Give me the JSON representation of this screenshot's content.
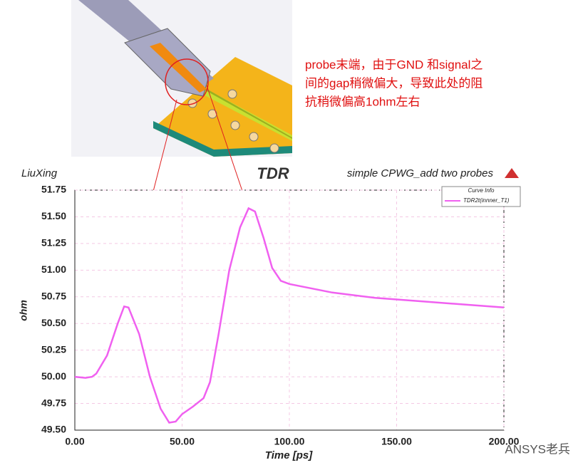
{
  "chart_data": {
    "type": "line",
    "title": "TDR",
    "subtitle": "simple CPWG_add two probes",
    "author": "LiuXing",
    "xlabel": "Time [ps]",
    "ylabel": "ohm",
    "legend_title": "Curve Info",
    "annotation": [
      "probe末端，由于GND 和signal之",
      "间的gap稍微偏大，导致此处的阻",
      "抗稍微偏高1ohm左右"
    ],
    "watermark": "ANSYS老兵",
    "x": [
      0,
      5,
      8,
      10,
      15,
      20,
      23,
      25,
      30,
      35,
      40,
      44,
      47,
      50,
      55,
      60,
      63,
      67,
      72,
      77,
      81,
      84,
      88,
      92,
      96,
      100,
      110,
      120,
      140,
      160,
      180,
      200
    ],
    "series": [
      {
        "name": "TDR2t(innner_T1)",
        "color": "#f060f0",
        "values": [
          50.0,
          49.99,
          50.0,
          50.03,
          50.2,
          50.5,
          50.66,
          50.65,
          50.4,
          50.0,
          49.7,
          49.57,
          49.58,
          49.65,
          49.72,
          49.8,
          49.95,
          50.4,
          51.0,
          51.4,
          51.58,
          51.55,
          51.3,
          51.02,
          50.9,
          50.87,
          50.83,
          50.79,
          50.74,
          50.71,
          50.68,
          50.65
        ]
      }
    ],
    "xlim": [
      0,
      200
    ],
    "ylim": [
      49.5,
      51.75
    ],
    "xticks": [
      {
        "value": 0,
        "label": "0.00"
      },
      {
        "value": 50,
        "label": "50.00"
      },
      {
        "value": 100,
        "label": "100.00"
      },
      {
        "value": 150,
        "label": "150.00"
      },
      {
        "value": 200,
        "label": "200.00"
      }
    ],
    "yticks": [
      {
        "value": 49.5,
        "label": "49.50"
      },
      {
        "value": 49.75,
        "label": "49.75"
      },
      {
        "value": 50,
        "label": "50.00"
      },
      {
        "value": 50.25,
        "label": "50.25"
      },
      {
        "value": 50.5,
        "label": "50.50"
      },
      {
        "value": 50.75,
        "label": "50.75"
      },
      {
        "value": 51,
        "label": "51.00"
      },
      {
        "value": 51.25,
        "label": "51.25"
      },
      {
        "value": 51.5,
        "label": "51.50"
      },
      {
        "value": 51.75,
        "label": "51.75"
      }
    ],
    "grid": true
  }
}
